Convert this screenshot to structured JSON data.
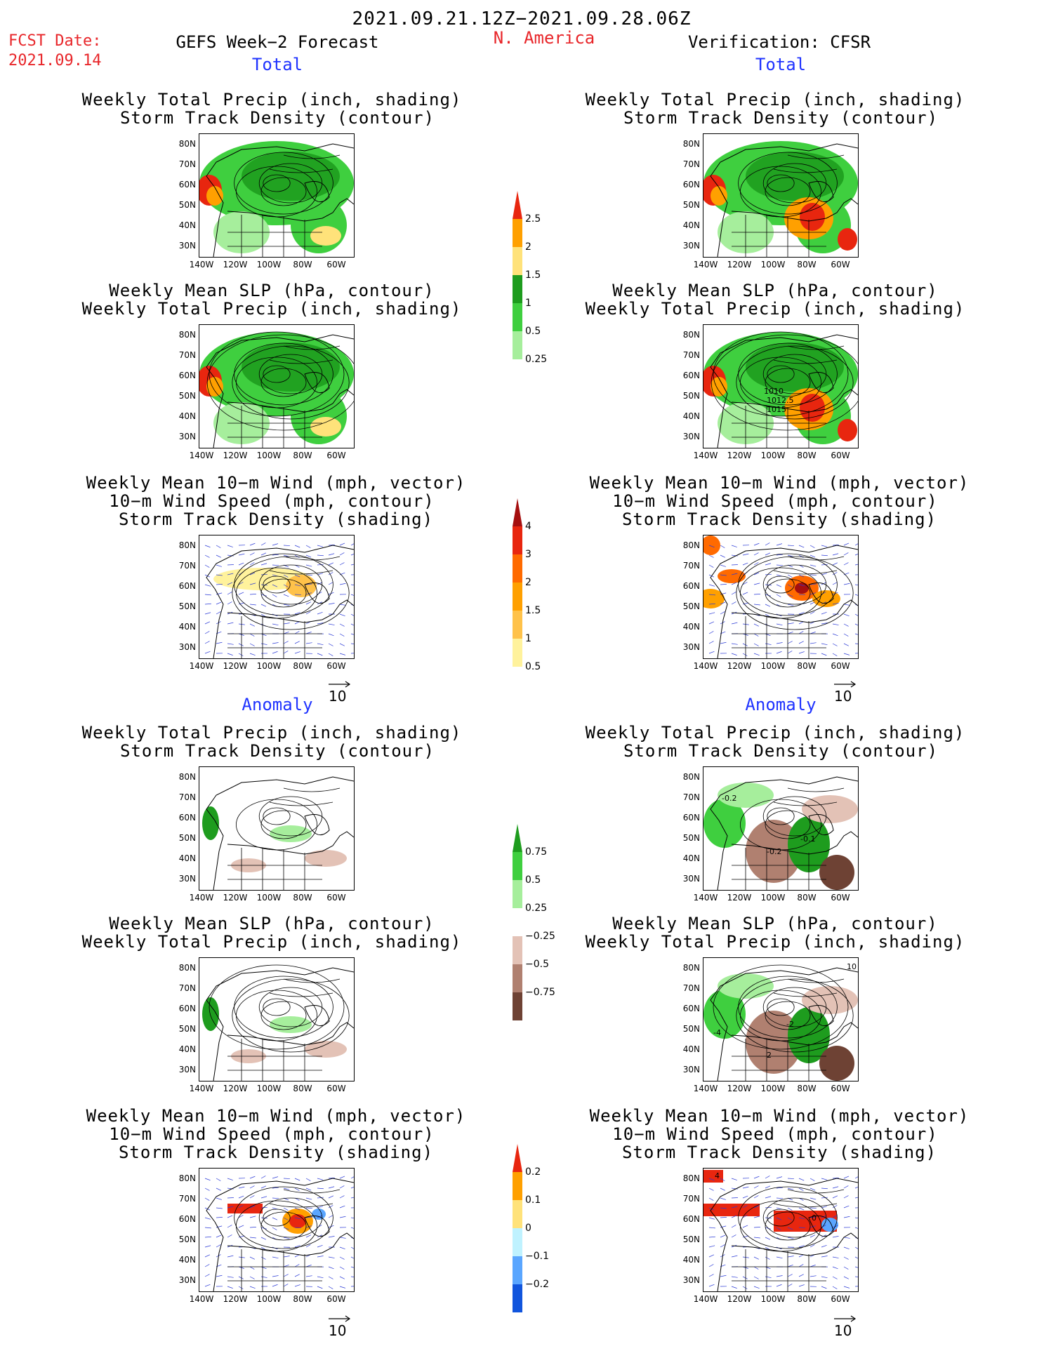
{
  "header": {
    "date_range": "2021.09.21.12Z−2021.09.28.06Z",
    "region": "N. America",
    "fcst_label": "FCST Date:",
    "fcst_date": "2021.09.14",
    "left_title": "GEFS Week−2 Forecast",
    "right_title": "Verification: CFSR"
  },
  "sections": {
    "total": "Total",
    "anomaly": "Anomaly"
  },
  "panels": [
    {
      "line1": "Weekly Total Precip (inch, shading)",
      "line2": "Storm Track Density (contour)",
      "line3": ""
    },
    {
      "line1": "Weekly Mean SLP (hPa, contour)",
      "line2": "Weekly Total Precip (inch, shading)",
      "line3": ""
    },
    {
      "line1": "Weekly Mean 10−m Wind (mph, vector)",
      "line2": "10−m Wind Speed (mph, contour)",
      "line3": "Storm Track Density (shading)"
    },
    {
      "line1": "Weekly Total Precip (inch, shading)",
      "line2": "Storm Track Density (contour)",
      "line3": ""
    },
    {
      "line1": "Weekly Mean SLP (hPa, contour)",
      "line2": "Weekly Total Precip (inch, shading)",
      "line3": ""
    },
    {
      "line1": "Weekly Mean 10−m Wind (mph, vector)",
      "line2": "10−m Wind Speed (mph, contour)",
      "line3": "Storm Track Density (shading)"
    }
  ],
  "axes": {
    "lat_labels": [
      "80N",
      "70N",
      "60N",
      "50N",
      "40N",
      "30N"
    ],
    "lon_labels": [
      "140W",
      "120W",
      "100W",
      "80W",
      "60W"
    ]
  },
  "vector_ref": "10",
  "contour_labels": {
    "slp_total_right": [
      "1010",
      "1012.5",
      "1015"
    ],
    "precip_anom_right": [
      "-0.2",
      "-0.1",
      "-0.2"
    ],
    "slp_anom_right": [
      "10",
      "-4",
      "-2",
      "2"
    ],
    "wind_anom_right": [
      "4",
      "0"
    ]
  },
  "colorbars": {
    "precip_total": {
      "labels": [
        "2.5",
        "2",
        "1.5",
        "1",
        "0.5",
        "0.25"
      ],
      "colors": [
        "#e8260f",
        "#ffa000",
        "#ffe27a",
        "#1e9c1e",
        "#3fcf3f",
        "#a6ee9c"
      ]
    },
    "track_total": {
      "labels": [
        "4",
        "3",
        "2",
        "1.5",
        "1",
        "0.5"
      ],
      "colors": [
        "#a50f0f",
        "#e8260f",
        "#ff6a00",
        "#ffa000",
        "#ffc24a",
        "#fff29c"
      ]
    },
    "precip_anom": {
      "labels": [
        "0.75",
        "0.5",
        "0.25",
        "−0.25",
        "−0.5",
        "−0.75"
      ],
      "colors": [
        "#1e9c1e",
        "#3fcf3f",
        "#a6ee9c",
        "#ffffff",
        "#e3c2b6",
        "#b08070",
        "#6e4234"
      ]
    },
    "track_anom": {
      "labels": [
        "0.2",
        "0.1",
        "0",
        "−0.1",
        "−0.2"
      ],
      "colors": [
        "#e8260f",
        "#ffa000",
        "#ffe27a",
        "#bff2ff",
        "#5aa6ff",
        "#1155dd"
      ]
    }
  }
}
